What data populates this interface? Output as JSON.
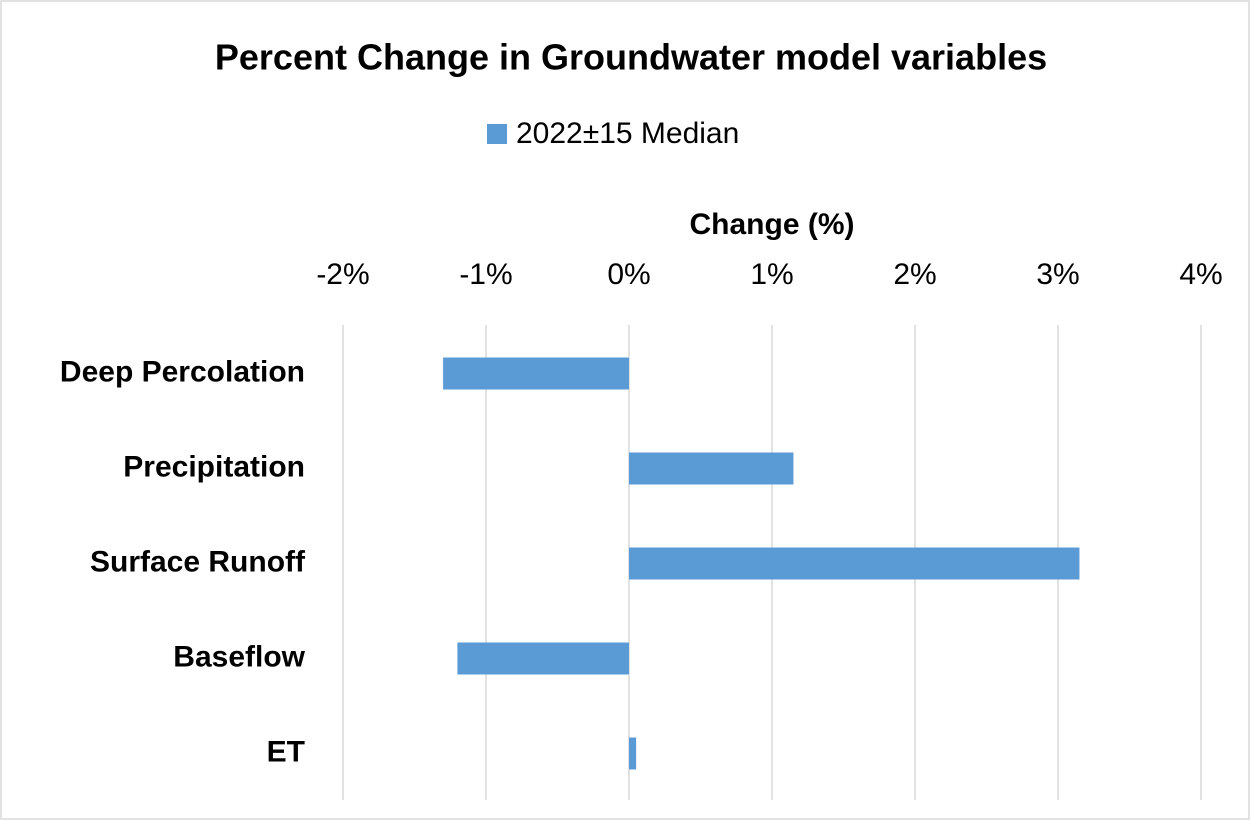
{
  "chart_data": {
    "type": "hbar",
    "title": "Percent Change in Groundwater model variables",
    "x_label": "Change (%)",
    "categories": [
      "Deep Percolation",
      "Precipitation",
      "Surface Runoff",
      "Baseflow",
      "ET"
    ],
    "series": [
      {
        "name": "2022±15 Median",
        "color": "#5b9bd5",
        "values": [
          -1.3,
          1.15,
          3.15,
          -1.2,
          0.05
        ]
      }
    ],
    "xlim": [
      -2,
      4
    ],
    "xticks": [
      {
        "value": -2,
        "label": "-2%"
      },
      {
        "value": -1,
        "label": "-1%"
      },
      {
        "value": 0,
        "label": "0%"
      },
      {
        "value": 1,
        "label": "1%"
      },
      {
        "value": 2,
        "label": "2%"
      },
      {
        "value": 3,
        "label": "3%"
      },
      {
        "value": 4,
        "label": "4%"
      }
    ],
    "grid": true,
    "legend": "top"
  }
}
